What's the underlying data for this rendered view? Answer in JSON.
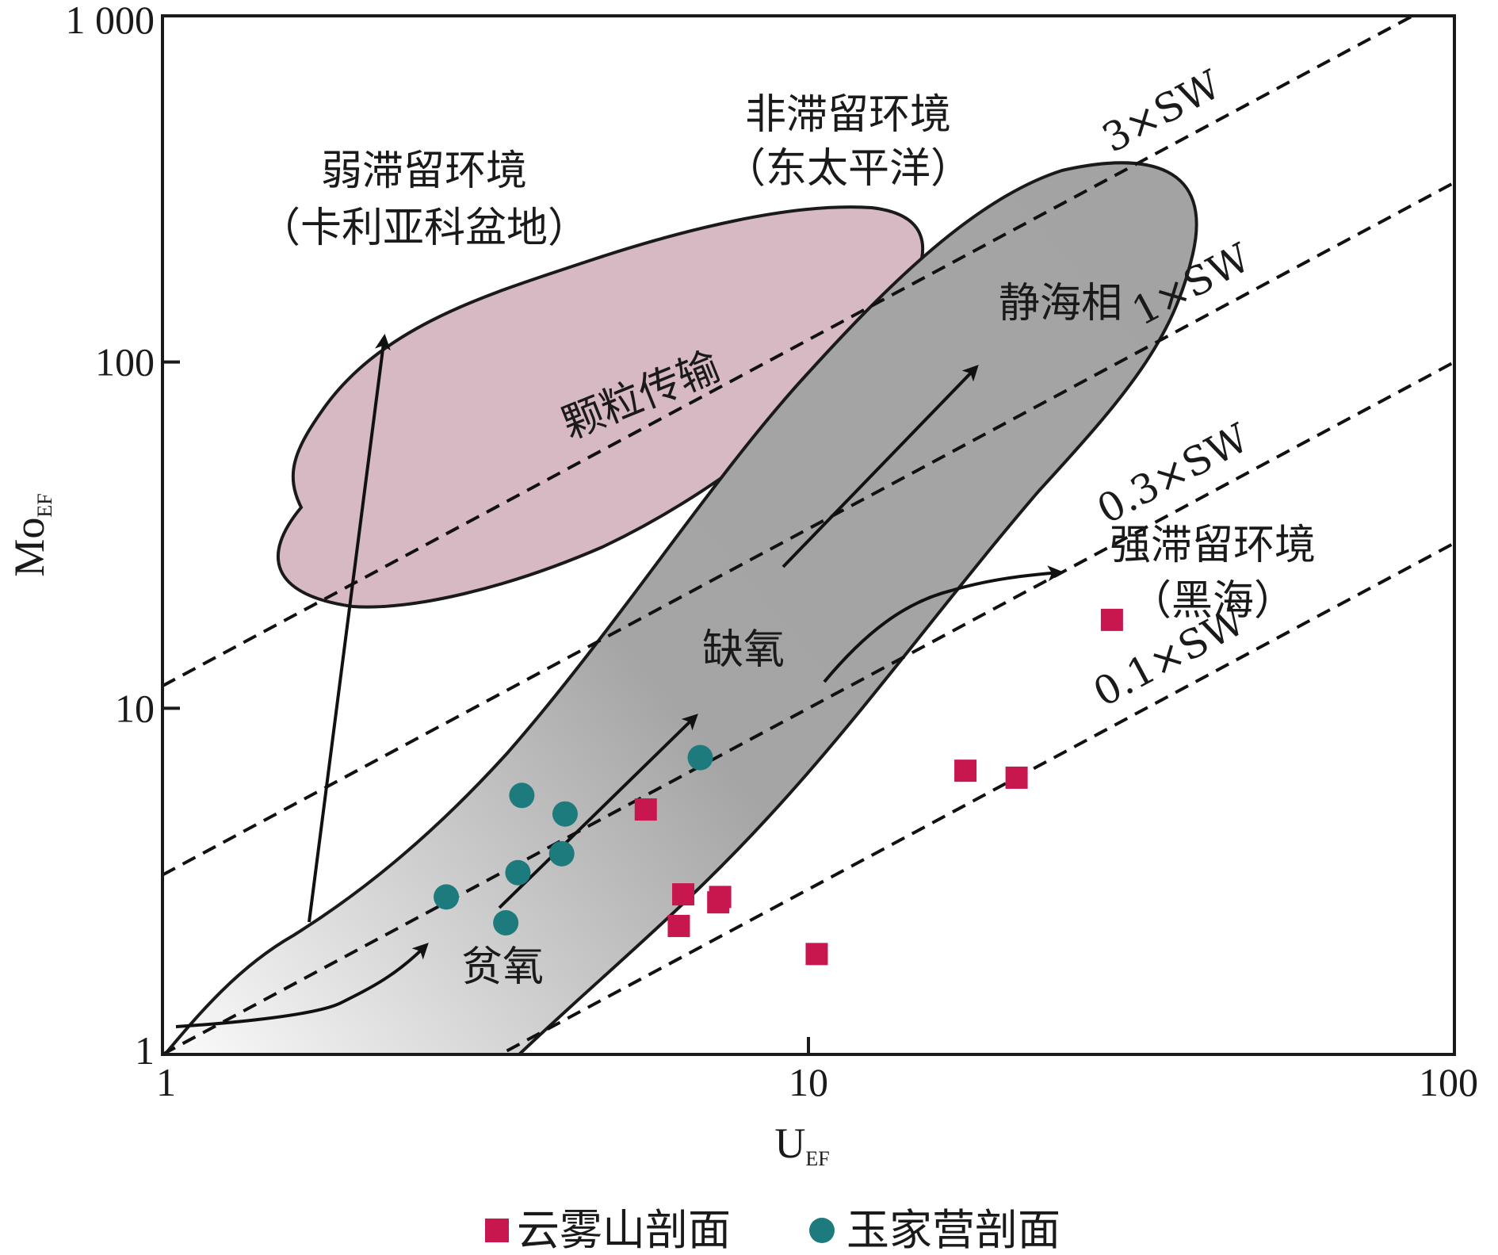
{
  "chart_data": {
    "type": "scatter",
    "x_scale": "log",
    "y_scale": "log",
    "xlim": [
      1,
      100
    ],
    "ylim": [
      1,
      1000
    ],
    "xlabel_main": "U",
    "xlabel_sub": "EF",
    "ylabel_main": "Mo",
    "ylabel_sub": "EF",
    "x_ticks": [
      {
        "value": 1,
        "label": "1"
      },
      {
        "value": 10,
        "label": "10"
      },
      {
        "value": 100,
        "label": "100"
      }
    ],
    "y_ticks": [
      {
        "value": 1,
        "label": "1"
      },
      {
        "value": 10,
        "label": "10"
      },
      {
        "value": 100,
        "label": "100"
      },
      {
        "value": 1000,
        "label": "1 000"
      }
    ],
    "reference_lines": [
      {
        "label": "3×SW",
        "ratio": 11.6
      },
      {
        "label": "1×SW",
        "ratio": 3.3
      },
      {
        "label": "0.3×SW",
        "ratio": 1.0
      },
      {
        "label": "0.1×SW",
        "ratio": 0.3
      }
    ],
    "annotations": {
      "weak": [
        "弱滞留环境",
        "（卡利亚科盆地）"
      ],
      "non": [
        "非滞留环境",
        "（东太平洋）"
      ],
      "strong": [
        "强滞留环境",
        "（黑海）"
      ],
      "particle": "颗粒传输",
      "euxinic": "静海相",
      "anoxic": "缺氧",
      "suboxic": "贫氧"
    },
    "series": [
      {
        "name": "云雾山剖面",
        "marker": "square",
        "color": "#c8174f",
        "points": [
          {
            "x": 5.6,
            "y": 5.1
          },
          {
            "x": 6.4,
            "y": 2.9
          },
          {
            "x": 6.3,
            "y": 2.35
          },
          {
            "x": 7.3,
            "y": 2.85
          },
          {
            "x": 7.25,
            "y": 2.75
          },
          {
            "x": 10.3,
            "y": 1.95
          },
          {
            "x": 17.5,
            "y": 6.6
          },
          {
            "x": 21.0,
            "y": 6.3
          },
          {
            "x": 29.5,
            "y": 18.0
          }
        ]
      },
      {
        "name": "玉家营剖面",
        "marker": "circle",
        "color": "#1e7b7d",
        "points": [
          {
            "x": 2.75,
            "y": 2.85
          },
          {
            "x": 3.6,
            "y": 5.6
          },
          {
            "x": 3.55,
            "y": 3.35
          },
          {
            "x": 4.2,
            "y": 4.95
          },
          {
            "x": 4.15,
            "y": 3.8
          },
          {
            "x": 3.4,
            "y": 2.4
          },
          {
            "x": 6.8,
            "y": 7.2
          }
        ]
      }
    ],
    "legend_position": "bottom"
  },
  "colors": {
    "particle_fill": "#d7b9c3",
    "envelope_dark": "#a3a3a3",
    "envelope_light": "#f7f7f7",
    "axis": "#1a1a1a"
  }
}
